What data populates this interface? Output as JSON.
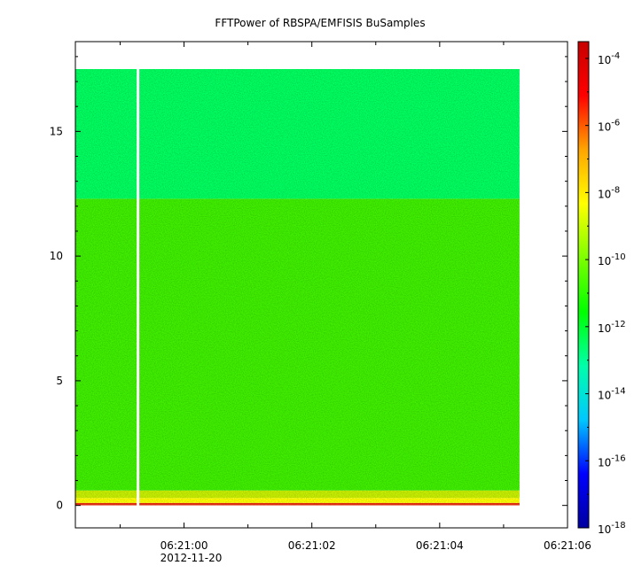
{
  "chart_data": {
    "type": "heatmap",
    "title": "FFTPower of RBSPA/EMFISIS  BuSamples",
    "xlabel": "",
    "ylabel": "",
    "x_ticks": [
      {
        "label": "06:21:00",
        "sublabel": "2012-11-20",
        "t": 0
      },
      {
        "label": "06:21:02",
        "t": 2
      },
      {
        "label": "06:21:04",
        "t": 4
      },
      {
        "label": "06:21:06",
        "t": 6
      }
    ],
    "x_minor_ticks": [
      -1,
      1,
      3,
      5
    ],
    "xlim": [
      -1.7,
      6.0
    ],
    "data_x_range": [
      -1.7,
      5.25
    ],
    "gap_x": -0.72,
    "y_ticks": [
      0,
      5,
      10,
      15
    ],
    "ylim": [
      -0.9,
      18.6
    ],
    "data_y_range": [
      0,
      17.5
    ],
    "colorbar": {
      "scale": "log",
      "range_exponent": [
        -18,
        -3.5
      ],
      "ticks": [
        {
          "base": "10",
          "exp": "-4",
          "value_exponent": -4
        },
        {
          "base": "10",
          "exp": "-6",
          "value_exponent": -6
        },
        {
          "base": "10",
          "exp": "-8",
          "value_exponent": -8
        },
        {
          "base": "10",
          "exp": "-10",
          "value_exponent": -10
        },
        {
          "base": "10",
          "exp": "-12",
          "value_exponent": -12
        },
        {
          "base": "10",
          "exp": "-14",
          "value_exponent": -14
        },
        {
          "base": "10",
          "exp": "-16",
          "value_exponent": -16
        },
        {
          "base": "10",
          "exp": "-18",
          "value_exponent": -18
        }
      ],
      "colors": [
        "#0000a0",
        "#0000ff",
        "#00c8ff",
        "#00ffaa",
        "#00ff00",
        "#7fff00",
        "#ffff00",
        "#ffa500",
        "#ff0000",
        "#c80000"
      ]
    },
    "bands": [
      {
        "y_from": 0,
        "y_to": 0.1,
        "log_power": -4.5,
        "color": "#e83010"
      },
      {
        "y_from": 0.1,
        "y_to": 0.3,
        "log_power": -8,
        "color": "#ffff00"
      },
      {
        "y_from": 0.3,
        "y_to": 0.6,
        "log_power": -9,
        "color": "#c8f000"
      },
      {
        "y_from": 0.6,
        "y_to": 12.3,
        "log_power": -10.5,
        "color": "#40f000"
      },
      {
        "y_from": 12.3,
        "y_to": 17.5,
        "log_power": -12,
        "color": "#00ff60"
      }
    ]
  }
}
